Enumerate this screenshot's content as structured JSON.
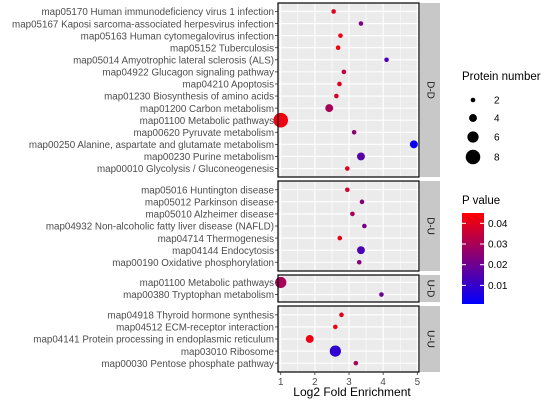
{
  "chart_data": {
    "type": "scatter",
    "title": "",
    "xlabel": "Log2 Fold Enrichment",
    "ylabel": "",
    "xlim": [
      0.92,
      5.05
    ],
    "x_ticks": [
      "1",
      "2",
      "3",
      "4",
      "5"
    ],
    "grid": true,
    "legend_position": "right",
    "size_legend": {
      "title": "Protein number",
      "levels": [
        {
          "label": "2",
          "value": 2
        },
        {
          "label": "4",
          "value": 4
        },
        {
          "label": "6",
          "value": 6
        },
        {
          "label": "8",
          "value": 8
        }
      ]
    },
    "color_legend": {
      "title": "P value",
      "range": [
        0.001,
        0.045
      ],
      "ticks": [
        {
          "label": "0.04",
          "value": 0.04
        },
        {
          "label": "0.03",
          "value": 0.03
        },
        {
          "label": "0.02",
          "value": 0.02
        },
        {
          "label": "0.01",
          "value": 0.01
        }
      ],
      "colors": [
        "#0000ff",
        "#ff0000"
      ]
    },
    "panels": [
      {
        "strip": "D-D",
        "points": [
          {
            "label": "map05170 Human immunodeficiency virus 1 infection",
            "x": 2.55,
            "size": 2,
            "p": 0.04
          },
          {
            "label": "map05167 Kaposi sarcoma-associated herpesvirus infection",
            "x": 3.35,
            "size": 2,
            "p": 0.023
          },
          {
            "label": "map05163 Human cytomegalovirus infection",
            "x": 2.75,
            "size": 2,
            "p": 0.042
          },
          {
            "label": "map05152 Tuberculosis",
            "x": 2.68,
            "size": 2,
            "p": 0.043
          },
          {
            "label": "map05014 Amyotrophic lateral sclerosis (ALS)",
            "x": 4.1,
            "size": 2,
            "p": 0.014
          },
          {
            "label": "map04922 Glucagon signaling pathway",
            "x": 2.85,
            "size": 2,
            "p": 0.035
          },
          {
            "label": "map04210 Apoptosis",
            "x": 2.72,
            "size": 2,
            "p": 0.04
          },
          {
            "label": "map01230 Biosynthesis of amino acids",
            "x": 2.63,
            "size": 2,
            "p": 0.037
          },
          {
            "label": "map01200 Carbon metabolism",
            "x": 2.42,
            "size": 4,
            "p": 0.03
          },
          {
            "label": "map01100 Metabolic pathways",
            "x": 1.0,
            "size": 8,
            "p": 0.042
          },
          {
            "label": "map00620 Pyruvate metabolism",
            "x": 3.15,
            "size": 2,
            "p": 0.025
          },
          {
            "label": "map00250 Alanine, aspartate and glutamate metabolism",
            "x": 4.9,
            "size": 4,
            "p": 0.003
          },
          {
            "label": "map00230 Purine metabolism",
            "x": 3.35,
            "size": 4,
            "p": 0.016
          },
          {
            "label": "map00010 Glycolysis / Gluconeogenesis",
            "x": 2.95,
            "size": 2,
            "p": 0.04
          }
        ]
      },
      {
        "strip": "D-U",
        "points": [
          {
            "label": "map05016 Huntington disease",
            "x": 2.95,
            "size": 2,
            "p": 0.037
          },
          {
            "label": "map05012 Parkinson disease",
            "x": 3.38,
            "size": 2,
            "p": 0.024
          },
          {
            "label": "map05010 Alzheimer disease",
            "x": 3.1,
            "size": 2,
            "p": 0.03
          },
          {
            "label": "map04932 Non-alcoholic fatty liver disease (NAFLD)",
            "x": 3.45,
            "size": 2,
            "p": 0.022
          },
          {
            "label": "map04714 Thermogenesis",
            "x": 2.73,
            "size": 2,
            "p": 0.041
          },
          {
            "label": "map04144 Endocytosis",
            "x": 3.35,
            "size": 4,
            "p": 0.014
          },
          {
            "label": "map00190 Oxidative phosphorylation",
            "x": 3.3,
            "size": 2,
            "p": 0.025
          }
        ]
      },
      {
        "strip": "U-D",
        "points": [
          {
            "label": "map01100 Metabolic pathways",
            "x": 1.0,
            "size": 6,
            "p": 0.03
          },
          {
            "label": "map00380 Tryptophan metabolism",
            "x": 3.95,
            "size": 2,
            "p": 0.02
          }
        ]
      },
      {
        "strip": "U-U",
        "points": [
          {
            "label": "map04918 Thyroid hormone synthesis",
            "x": 2.78,
            "size": 2,
            "p": 0.04
          },
          {
            "label": "map04512 ECM-receptor interaction",
            "x": 2.6,
            "size": 2,
            "p": 0.042
          },
          {
            "label": "map04141 Protein processing in endoplasmic reticulum",
            "x": 1.85,
            "size": 4,
            "p": 0.042
          },
          {
            "label": "map03010 Ribosome",
            "x": 2.6,
            "size": 6,
            "p": 0.009
          },
          {
            "label": "map00030 Pentose phosphate pathway",
            "x": 3.2,
            "size": 2,
            "p": 0.03
          }
        ]
      }
    ]
  }
}
